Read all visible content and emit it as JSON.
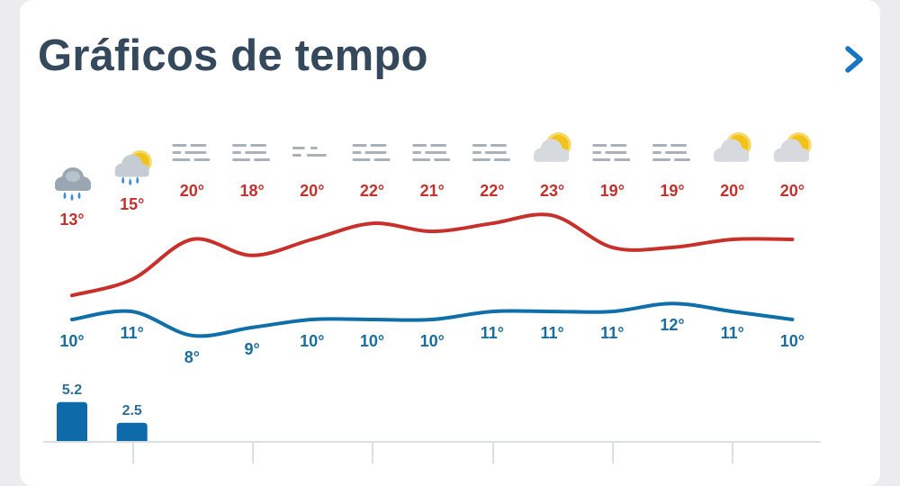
{
  "header": {
    "title": "Gráficos de tempo"
  },
  "icons": [
    "rain-cloud-icon",
    "sun-cloud-rain-icon",
    "fog-icon",
    "fog-icon",
    "fog-light-icon",
    "fog-icon",
    "fog-icon",
    "fog-icon",
    "partly-cloudy-icon",
    "fog-icon",
    "fog-icon",
    "partly-cloudy-icon",
    "partly-cloudy-icon"
  ],
  "colors": {
    "max_line": "#c8302b",
    "min_line": "#0f6fa8",
    "rain_bar": "#0e6aa8",
    "title": "#35495c",
    "chevron": "#1676c4"
  },
  "chart_data": {
    "type": "line",
    "series": [
      {
        "values": [
          13,
          15,
          20,
          18,
          20,
          22,
          21,
          22,
          23,
          19,
          19,
          20,
          20
        ]
      },
      {
        "values": [
          10,
          11,
          8,
          9,
          10,
          10,
          10,
          11,
          11,
          11,
          12,
          11,
          10
        ]
      }
    ],
    "max_labels": [
      "13°",
      "15°",
      "20°",
      "18°",
      "20°",
      "22°",
      "21°",
      "22°",
      "23°",
      "19°",
      "19°",
      "20°",
      "20°"
    ],
    "min_labels": [
      "10°",
      "11°",
      "8°",
      "9°",
      "10°",
      "10°",
      "10°",
      "11°",
      "11°",
      "11°",
      "12°",
      "11°",
      "10°"
    ],
    "precipitation": [
      5.2,
      2.5,
      0,
      0,
      0,
      0,
      0,
      0,
      0,
      0,
      0,
      0,
      0
    ],
    "precipitation_labels": [
      "5.2",
      "2.5"
    ]
  }
}
